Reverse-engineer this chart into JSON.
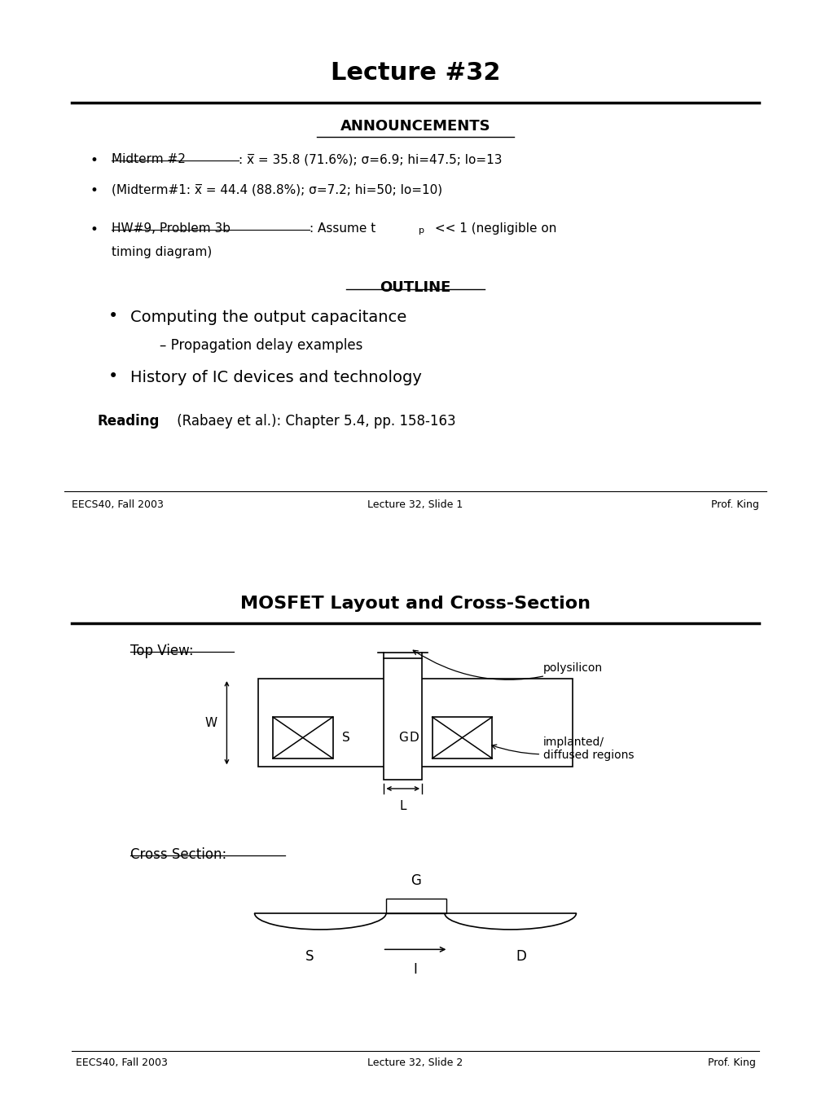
{
  "slide1_title": "Lecture #32",
  "slide1_announcements_title": "ANNOUNCEMENTS",
  "slide1_bullet1_underline": "Midterm #2",
  "slide1_bullet1_rest": ": x̅ = 35.8 (71.6%); σ=6.9; hi=47.5; lo=13",
  "slide1_bullet2": "(Midterm#1: x̅ = 44.4 (88.8%); σ=7.2; hi=50; lo=10)",
  "slide1_bullet3_underline": "HW#9, Problem 3b",
  "slide1_bullet3_colon": ": Assume t",
  "slide1_bullet3_sub": "p",
  "slide1_bullet3_end": " << 1 (negligible on",
  "slide1_bullet3_end2": "timing diagram)",
  "slide1_outline_title": "OUTLINE",
  "slide1_outline1": "Computing the output capacitance",
  "slide1_outline2": "Propagation delay examples",
  "slide1_outline3": "History of IC devices and technology",
  "slide1_reading_bold": "Reading",
  "slide1_reading_rest": " (Rabaey et al.): Chapter 5.4, pp. 158-163",
  "slide1_footer_left": "EECS40, Fall 2003",
  "slide1_footer_center": "Lecture 32, Slide 1",
  "slide1_footer_right": "Prof. King",
  "slide2_title": "MOSFET Layout and Cross-Section",
  "slide2_topview": "Top View:",
  "slide2_crosssection": "Cross Section:",
  "slide2_footer_left": "EECS40, Fall 2003",
  "slide2_footer_center": "Lecture 32, Slide 2",
  "slide2_footer_right": "Prof. King",
  "bg_color": "#ffffff",
  "border_color": "#000000",
  "text_color": "#000000"
}
